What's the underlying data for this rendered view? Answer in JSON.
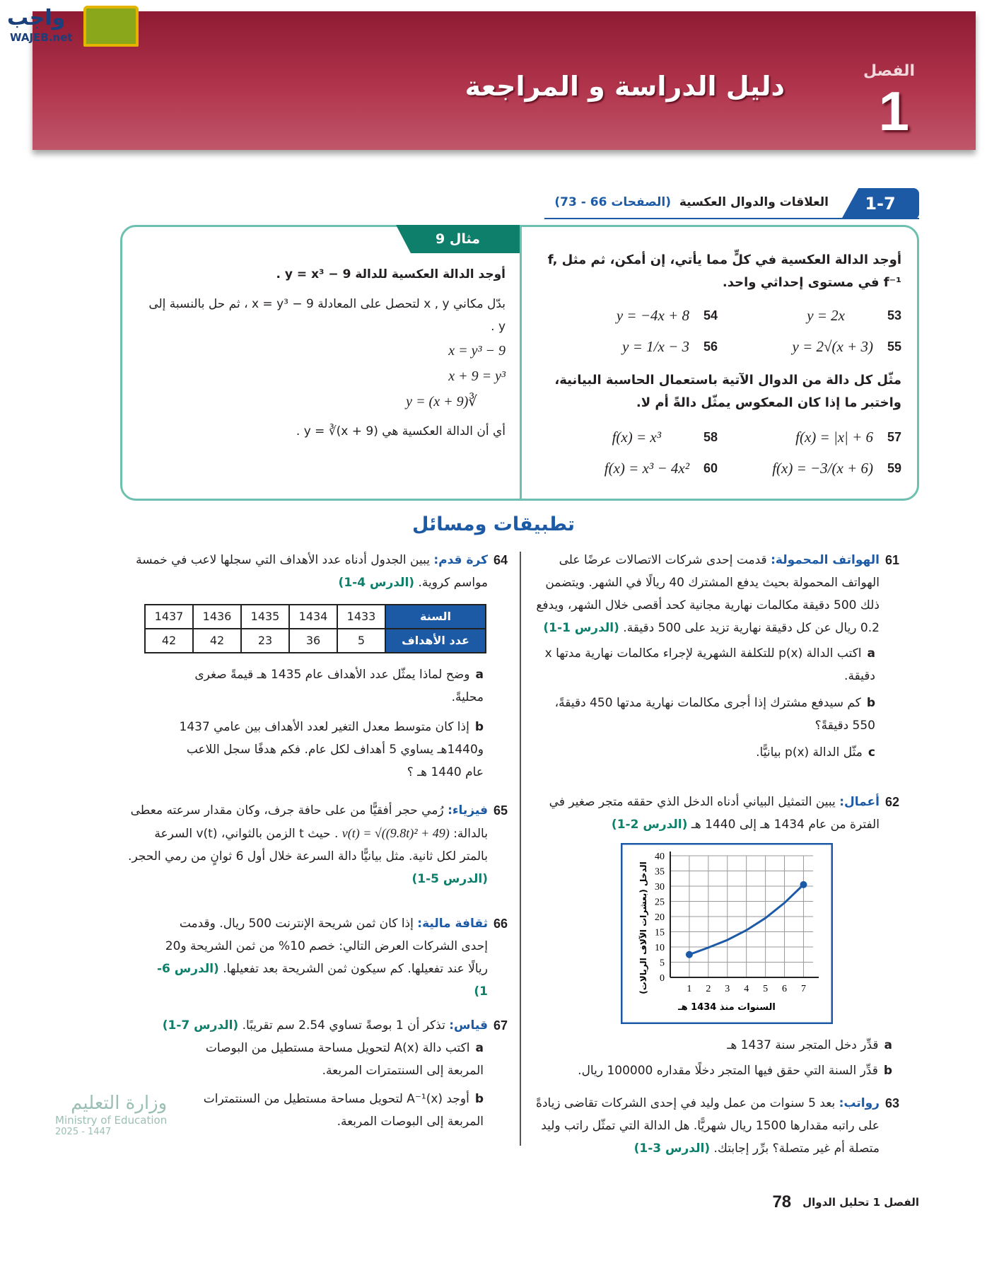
{
  "header": {
    "chapter_word": "الفصل",
    "chapter_number": "1",
    "title": "دليل الدراسة و المراجعة",
    "logo_text": "واجب",
    "logo_sub": "WAJEB.net"
  },
  "section": {
    "number": "1-7",
    "title": "العلاقات والدوال العكسية",
    "pages": "(الصفحات 66 - 73)"
  },
  "exercises": {
    "intro1": "أوجد الدالة العكسية في كلٍّ مما يأتي، إن أمكن، ثم مثل f, f⁻¹ في مستوى إحداثي واحد.",
    "items1": [
      {
        "n": "53",
        "expr": "y = 2x"
      },
      {
        "n": "54",
        "expr": "y = −4x + 8"
      },
      {
        "n": "55",
        "expr": "y = 2√(x + 3)"
      },
      {
        "n": "56",
        "expr": "y = 1/x − 3"
      }
    ],
    "intro2": "مثّل كل دالة من الدوال الآتية باستعمال الحاسبة البيانية، واختبر ما إذا كان المعكوس يمثّل دالةً أم لا.",
    "items2": [
      {
        "n": "57",
        "expr": "f(x) = |x| + 6"
      },
      {
        "n": "58",
        "expr": "f(x) = x³"
      },
      {
        "n": "59",
        "expr": "f(x) = −3/(x + 6)"
      },
      {
        "n": "60",
        "expr": "f(x) = x³ − 4x²"
      }
    ]
  },
  "example": {
    "label": "مثال 9",
    "prompt": "أوجد الدالة العكسية للدالة y = x³ − 9 .",
    "step_text": "بدّل مكاني x , y لتحصل على المعادلة x = y³ − 9 ، ثم حل بالنسبة إلى y .",
    "steps": [
      "x = y³ − 9",
      "x + 9 = y³",
      "∛(x + 9) = y"
    ],
    "conclusion": "أي أن الدالة العكسية هي y = ∛(x + 9) ."
  },
  "applications": {
    "title": "تطبيقات ومسائل"
  },
  "q61": {
    "n": "61",
    "tag": "الهواتف المحمولة:",
    "text": "قدمت إحدى شركات الاتصالات عرضًا على الهواتف المحمولة بحيث يدفع المشترك 40 ريالًا في الشهر. ويتضمن ذلك 500 دقيقة مكالمات نهارية مجانية كحد أقصى خلال الشهر، ويدفع 0.2 ريال عن كل دقيقة نهارية تزيد على 500 دقيقة.",
    "ref": "(الدرس 1-1)",
    "a": "اكتب الدالة p(x) للتكلفة الشهرية لإجراء مكالمات نهارية مدتها x دقيقة.",
    "b": "كم سيدفع مشترك إذا أجرى مكالمات نهارية مدتها 450 دقيقةً، 550 دقيقةً؟",
    "c": "مثّل الدالة p(x) بيانيًّا."
  },
  "q62": {
    "n": "62",
    "tag": "أعمال:",
    "text": "يبين التمثيل البياني أدناه الدخل الذي حققه متجر صغير في الفترة من عام 1434 هـ إلى 1440 هـ",
    "ref": "(الدرس 2-1)",
    "a": "قدِّر دخل المتجر سنة 1437 هـ",
    "b": "قدِّر السنة التي حقق فيها المتجر دخلًا مقداره 100000 ريال."
  },
  "chart_data": {
    "type": "line",
    "xlabel": "السنوات منذ 1434 هـ",
    "ylabel": "الدخل (بعشرات الآلاف الريالات)",
    "x_ticks": [
      1,
      2,
      3,
      4,
      5,
      6,
      7
    ],
    "y_ticks": [
      0,
      5,
      10,
      15,
      20,
      25,
      30,
      35,
      40
    ],
    "xlim": [
      0,
      7.8
    ],
    "ylim": [
      0,
      40
    ],
    "grid": true,
    "x": [
      1,
      2,
      3,
      4,
      5,
      6,
      7
    ],
    "y": [
      7.5,
      9.8,
      12.3,
      15.5,
      19.5,
      24.5,
      30.5
    ],
    "endpoints": [
      [
        1,
        7.5
      ],
      [
        7,
        30.5
      ]
    ],
    "color": "#1c5aa6"
  },
  "q63": {
    "n": "63",
    "tag": "رواتب:",
    "text": "بعد 5 سنوات من عمل وليد في إحدى الشركات تقاضى زيادةً على راتبه مقدارها 1500 ريال شهريًّا. هل الدالة التي تمثّل راتب وليد متصلة أم غير متصلة؟ برِّر إجابتك.",
    "ref": "(الدرس 3-1)"
  },
  "q64": {
    "n": "64",
    "tag": "كرة قدم:",
    "text": "يبين الجدول أدناه عدد الأهداف التي سجلها لاعب في خمسة مواسم كروية.",
    "ref": "(الدرس 4-1)",
    "table": {
      "row_headers": [
        "السنة",
        "عدد الأهداف"
      ],
      "years": [
        "1433",
        "1434",
        "1435",
        "1436",
        "1437"
      ],
      "goals": [
        "5",
        "36",
        "23",
        "42",
        "42"
      ]
    },
    "a": "وضح لماذا يمثّل عدد الأهداف عام 1435 هـ قيمةً صغرى محليةً.",
    "b": "إذا كان متوسط معدل التغير لعدد الأهداف بين عامي 1437 و1440هـ يساوي 5 أهداف لكل عام. فكم هدفًا سجل اللاعب عام 1440 هـ ؟"
  },
  "q65": {
    "n": "65",
    "tag": "فيزياء:",
    "text1": "رُمي حجر أفقيًّا من على حافة جرف، وكان مقدار سرعته معطى بالدالة:",
    "formula": "v(t) = √((9.8t)² + 49)",
    "text2": ". حيث t الزمن بالثواني، v(t) السرعة بالمتر لكل ثانية. مثل بيانيًّا دالة السرعة خلال أول 6 ثوانٍ من رمي الحجر.",
    "ref": "(الدرس 5-1)"
  },
  "q66": {
    "n": "66",
    "tag": "ثقافة مالية:",
    "text": "إذا كان ثمن شريحة الإنترنت 500 ريال. وقدمت إحدى الشركات العرض التالي: خصم 10% من ثمن الشريحة و20 ريالًا عند تفعيلها. كم سيكون ثمن الشريحة بعد تفعيلها.",
    "ref": "(الدرس 6-1)"
  },
  "q67": {
    "n": "67",
    "tag": "قياس:",
    "text": "تذكر أن 1 بوصةً تساوي 2.54 سم تقريبًا.",
    "ref": "(الدرس 7-1)",
    "a": "اكتب دالة A(x) لتحويل مساحة مستطيل من البوصات المربعة إلى السنتمترات المربعة.",
    "b": "أوجد A⁻¹(x) لتحويل مساحة مستطيل من السنتمترات المربعة إلى البوصات المربعة."
  },
  "footer": {
    "page": "78",
    "chapter": "الفصل 1",
    "chapter_title": "تحليل الدوال"
  },
  "ministry": {
    "ar": "وزارة التعليم",
    "en": "Ministry of Education",
    "year": "2025 - 1447"
  }
}
